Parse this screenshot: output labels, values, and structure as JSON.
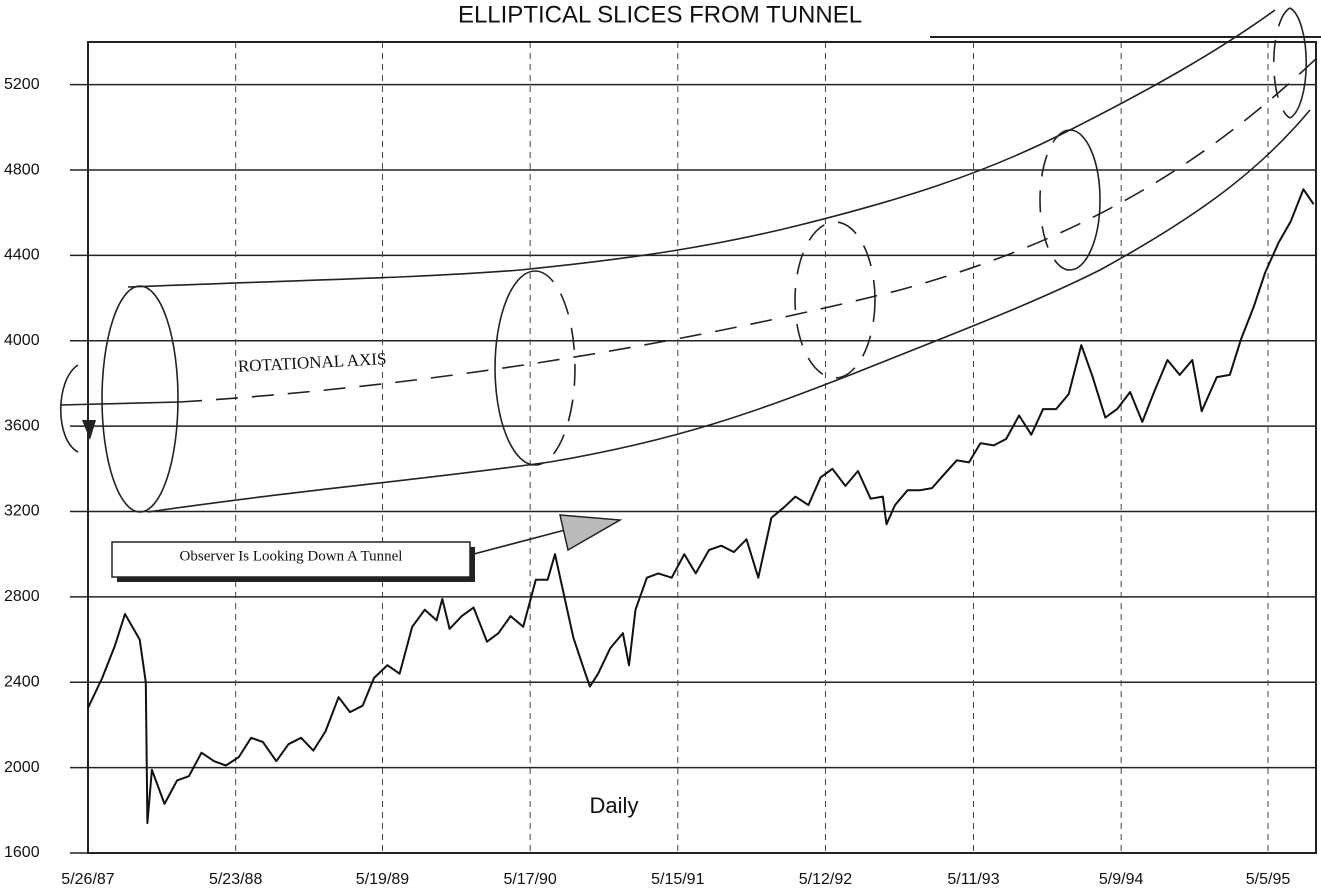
{
  "chart_data": {
    "type": "line",
    "title": "ELLIPTICAL SLICES FROM TUNNEL",
    "annotations": [
      "ROTATIONAL AXIS",
      "Observer Is Looking Down A Tunnel",
      "Daily"
    ],
    "color": "#111111",
    "grid": true,
    "xlim": [
      "1987-05-26",
      "1995-08-31"
    ],
    "xticks": [
      {
        "value": "1987-05-26",
        "label": "5/26/87"
      },
      {
        "value": "1988-05-23",
        "label": "5/23/88"
      },
      {
        "value": "1989-05-19",
        "label": "5/19/89"
      },
      {
        "value": "1990-05-17",
        "label": "5/17/90"
      },
      {
        "value": "1991-05-15",
        "label": "5/15/91"
      },
      {
        "value": "1992-05-12",
        "label": "5/12/92"
      },
      {
        "value": "1993-05-11",
        "label": "5/11/93"
      },
      {
        "value": "1994-05-09",
        "label": "5/9/94"
      },
      {
        "value": "1995-05-05",
        "label": "5/5/95"
      }
    ],
    "ylim": [
      1600,
      5400
    ],
    "yticks": [
      1600,
      2000,
      2400,
      2800,
      3200,
      3600,
      4000,
      4400,
      4800,
      5200
    ],
    "x": [
      "1987-05-26",
      "1987-06-30",
      "1987-07-31",
      "1987-08-25",
      "1987-09-30",
      "1987-10-15",
      "1987-10-19",
      "1987-10-30",
      "1987-11-30",
      "1987-12-31",
      "1988-01-29",
      "1988-02-29",
      "1988-03-31",
      "1988-04-29",
      "1988-05-31",
      "1988-06-30",
      "1988-07-29",
      "1988-08-31",
      "1988-09-30",
      "1988-10-31",
      "1988-11-30",
      "1988-12-30",
      "1989-01-31",
      "1989-02-28",
      "1989-03-31",
      "1989-04-28",
      "1989-05-31",
      "1989-06-30",
      "1989-07-31",
      "1989-08-31",
      "1989-09-29",
      "1989-10-13",
      "1989-10-31",
      "1989-11-30",
      "1989-12-29",
      "1990-01-31",
      "1990-02-28",
      "1990-03-30",
      "1990-04-30",
      "1990-05-31",
      "1990-06-29",
      "1990-07-17",
      "1990-08-31",
      "1990-09-28",
      "1990-10-11",
      "1990-10-31",
      "1990-11-30",
      "1990-12-31",
      "1991-01-15",
      "1991-01-31",
      "1991-02-28",
      "1991-03-28",
      "1991-04-30",
      "1991-05-31",
      "1991-06-28",
      "1991-07-31",
      "1991-08-30",
      "1991-09-30",
      "1991-10-31",
      "1991-11-29",
      "1991-12-31",
      "1992-01-31",
      "1992-02-28",
      "1992-03-31",
      "1992-04-30",
      "1992-05-29",
      "1992-06-30",
      "1992-07-31",
      "1992-08-31",
      "1992-09-30",
      "1992-10-09",
      "1992-10-30",
      "1992-11-30",
      "1992-12-31",
      "1993-01-29",
      "1993-02-26",
      "1993-03-31",
      "1993-04-30",
      "1993-05-28",
      "1993-06-30",
      "1993-07-30",
      "1993-08-31",
      "1993-09-30",
      "1993-10-29",
      "1993-11-30",
      "1993-12-31",
      "1994-01-31",
      "1994-02-28",
      "1994-03-31",
      "1994-04-29",
      "1994-05-31",
      "1994-06-30",
      "1994-07-29",
      "1994-08-31",
      "1994-09-30",
      "1994-10-31",
      "1994-11-23",
      "1994-12-30",
      "1995-01-31",
      "1995-02-28",
      "1995-03-31",
      "1995-04-28",
      "1995-05-31",
      "1995-06-30",
      "1995-07-31",
      "1995-08-25"
    ],
    "values": [
      2280,
      2420,
      2570,
      2720,
      2600,
      2400,
      1740,
      1990,
      1830,
      1940,
      1960,
      2070,
      2030,
      2010,
      2050,
      2140,
      2120,
      2030,
      2110,
      2140,
      2080,
      2170,
      2330,
      2260,
      2290,
      2420,
      2480,
      2440,
      2660,
      2740,
      2690,
      2790,
      2650,
      2710,
      2750,
      2590,
      2630,
      2710,
      2660,
      2880,
      2880,
      3000,
      2610,
      2450,
      2380,
      2440,
      2560,
      2630,
      2480,
      2740,
      2890,
      2910,
      2890,
      3000,
      2910,
      3020,
      3040,
      3010,
      3070,
      2890,
      3170,
      3220,
      3270,
      3230,
      3360,
      3400,
      3320,
      3390,
      3260,
      3270,
      3140,
      3230,
      3300,
      3300,
      3310,
      3370,
      3440,
      3430,
      3520,
      3510,
      3540,
      3650,
      3560,
      3680,
      3680,
      3750,
      3980,
      3830,
      3640,
      3680,
      3760,
      3620,
      3760,
      3910,
      3840,
      3910,
      3670,
      3830,
      3840,
      4010,
      4160,
      4320,
      4460,
      4560,
      4710,
      4640
    ]
  }
}
